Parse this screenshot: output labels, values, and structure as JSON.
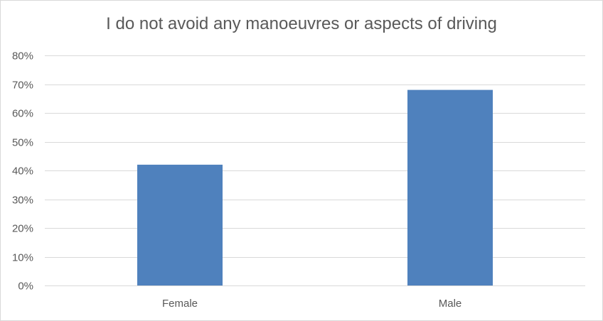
{
  "chart_data": {
    "type": "bar",
    "title": "I do not avoid any manoeuvres or aspects of driving",
    "categories": [
      "Female",
      "Male"
    ],
    "values": [
      42,
      68
    ],
    "ylim": [
      0,
      80
    ],
    "yticks": [
      "0%",
      "10%",
      "20%",
      "30%",
      "40%",
      "50%",
      "60%",
      "70%",
      "80%"
    ],
    "ytick_values": [
      0,
      10,
      20,
      30,
      40,
      50,
      60,
      70,
      80
    ],
    "xlabel": "",
    "ylabel": "",
    "grid": true,
    "legend": "none",
    "colors": {
      "bar": "#4f81bd",
      "grid": "#d9d9d9",
      "text": "#595959"
    }
  }
}
